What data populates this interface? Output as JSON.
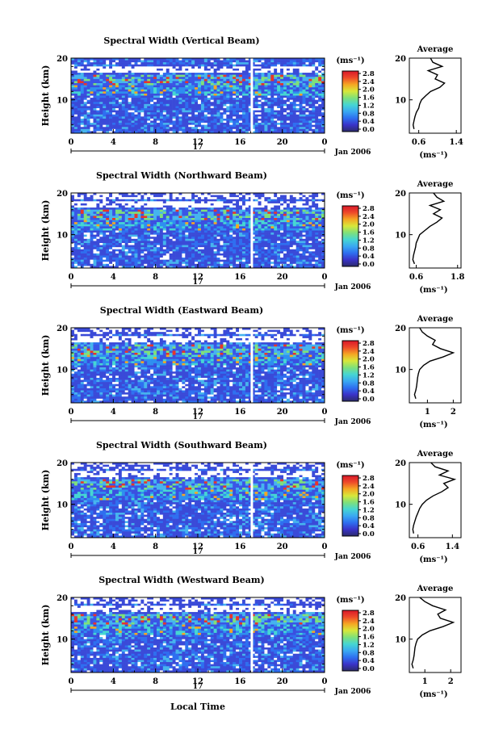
{
  "footer": {
    "xlabel": "Local Time"
  },
  "colorbar": {
    "unit": "(ms⁻¹)",
    "ticks": [
      "2.8",
      "2.4",
      "2.0",
      "1.6",
      "1.2",
      "0.8",
      "0.4",
      "0.0"
    ],
    "stops": [
      "#2b2b6b",
      "#3a33c9",
      "#2e6ff0",
      "#3aa9f2",
      "#46d6d2",
      "#7fe07a",
      "#d7e83a",
      "#f5a623",
      "#ee4a2a",
      "#d9182a"
    ]
  },
  "colors": {
    "low": "#3a56e6",
    "mid": "#46b4ee",
    "high": "#e8352a",
    "gap": "#ffffff"
  },
  "chart_data": [
    {
      "type": "heatmap",
      "title": "Spectral Width (Vertical Beam)",
      "ylabel": "Height (km)",
      "yticks": [
        "20",
        "10"
      ],
      "xticks": [
        "0",
        "4",
        "8",
        "12",
        "16",
        "20",
        "0"
      ],
      "day_label": "17",
      "date_label": "Jan 2006",
      "xlim": [
        0,
        24
      ],
      "ylim": [
        2,
        20
      ],
      "inset": {
        "title": "Average",
        "xlabel": "(ms⁻¹)",
        "xticks": [
          "0.6",
          "1.4"
        ],
        "yticks": [
          "20",
          "10"
        ],
        "xlim": [
          0.4,
          1.5
        ],
        "height_km": [
          3,
          4,
          5,
          6,
          7,
          8,
          9,
          10,
          11,
          12,
          13,
          14,
          15,
          16,
          17,
          18,
          19,
          20
        ],
        "width": [
          0.5,
          0.48,
          0.5,
          0.52,
          0.55,
          0.6,
          0.62,
          0.66,
          0.75,
          0.85,
          1.05,
          1.15,
          0.95,
          1.0,
          0.8,
          1.1,
          0.9,
          0.85
        ]
      }
    },
    {
      "type": "heatmap",
      "title": "Spectral Width (Northward Beam)",
      "ylabel": "Height (km)",
      "yticks": [
        "20",
        "10"
      ],
      "xticks": [
        "0",
        "4",
        "8",
        "12",
        "16",
        "20",
        "0"
      ],
      "day_label": "17",
      "date_label": "Jan 2006",
      "xlim": [
        0,
        24
      ],
      "ylim": [
        2,
        20
      ],
      "inset": {
        "title": "Average",
        "xlabel": "(ms⁻¹)",
        "xticks": [
          "0.6",
          "1.8"
        ],
        "yticks": [
          "20",
          "10"
        ],
        "xlim": [
          0.4,
          1.9
        ],
        "height_km": [
          3,
          4,
          5,
          6,
          7,
          8,
          9,
          10,
          11,
          12,
          13,
          14,
          15,
          16,
          17,
          18,
          19,
          20
        ],
        "width": [
          0.55,
          0.5,
          0.52,
          0.55,
          0.58,
          0.6,
          0.65,
          0.7,
          0.85,
          1.0,
          1.2,
          1.35,
          1.1,
          1.3,
          1.0,
          1.4,
          1.2,
          1.1
        ]
      }
    },
    {
      "type": "heatmap",
      "title": "Spectral Width (Eastward Beam)",
      "ylabel": "Height (km)",
      "yticks": [
        "20",
        "10"
      ],
      "xticks": [
        "0",
        "4",
        "8",
        "12",
        "16",
        "20",
        "0"
      ],
      "day_label": "17",
      "date_label": "Jan 2006",
      "xlim": [
        0,
        24
      ],
      "ylim": [
        2,
        20
      ],
      "inset": {
        "title": "Average",
        "xlabel": "(ms⁻¹)",
        "xticks": [
          "1",
          "2"
        ],
        "yticks": [
          "20",
          "10"
        ],
        "xlim": [
          0.3,
          2.3
        ],
        "height_km": [
          3,
          4,
          5,
          6,
          7,
          8,
          9,
          10,
          11,
          12,
          13,
          14,
          15,
          16,
          17,
          18,
          19,
          20
        ],
        "width": [
          0.55,
          0.5,
          0.55,
          0.58,
          0.6,
          0.62,
          0.65,
          0.7,
          0.85,
          1.1,
          1.6,
          2.0,
          1.5,
          1.2,
          1.3,
          1.0,
          0.8,
          0.7
        ]
      }
    },
    {
      "type": "heatmap",
      "title": "Spectral Width (Southward Beam)",
      "ylabel": "Height (km)",
      "yticks": [
        "20",
        "10"
      ],
      "xticks": [
        "0",
        "4",
        "8",
        "12",
        "16",
        "20",
        "0"
      ],
      "day_label": "17",
      "date_label": "Jan 2006",
      "xlim": [
        0,
        24
      ],
      "ylim": [
        2,
        20
      ],
      "inset": {
        "title": "Average",
        "xlabel": "(ms⁻¹)",
        "xticks": [
          "0.6",
          "1.4"
        ],
        "yticks": [
          "20",
          "10"
        ],
        "xlim": [
          0.4,
          1.6
        ],
        "height_km": [
          3,
          4,
          5,
          6,
          7,
          8,
          9,
          10,
          11,
          12,
          13,
          14,
          15,
          16,
          17,
          18,
          19,
          20
        ],
        "width": [
          0.5,
          0.48,
          0.5,
          0.53,
          0.56,
          0.6,
          0.64,
          0.7,
          0.8,
          0.95,
          1.15,
          1.3,
          1.2,
          1.45,
          1.1,
          1.3,
          1.0,
          0.9
        ]
      }
    },
    {
      "type": "heatmap",
      "title": "Spectral Width (Westward Beam)",
      "ylabel": "Height (km)",
      "yticks": [
        "20",
        "10"
      ],
      "xticks": [
        "0",
        "4",
        "8",
        "12",
        "16",
        "20",
        "0"
      ],
      "day_label": "17",
      "date_label": "Jan 2006",
      "xlim": [
        0,
        24
      ],
      "ylim": [
        2,
        20
      ],
      "inset": {
        "title": "Average",
        "xlabel": "(ms⁻¹)",
        "xticks": [
          "1",
          "2"
        ],
        "yticks": [
          "20",
          "10"
        ],
        "xlim": [
          0.4,
          2.4
        ],
        "height_km": [
          3,
          4,
          5,
          6,
          7,
          8,
          9,
          10,
          11,
          12,
          13,
          14,
          15,
          16,
          17,
          18,
          19,
          20
        ],
        "width": [
          0.55,
          0.5,
          0.55,
          0.58,
          0.6,
          0.62,
          0.66,
          0.72,
          0.9,
          1.2,
          1.7,
          2.1,
          1.6,
          1.5,
          1.8,
          1.3,
          1.0,
          0.8
        ]
      }
    }
  ]
}
